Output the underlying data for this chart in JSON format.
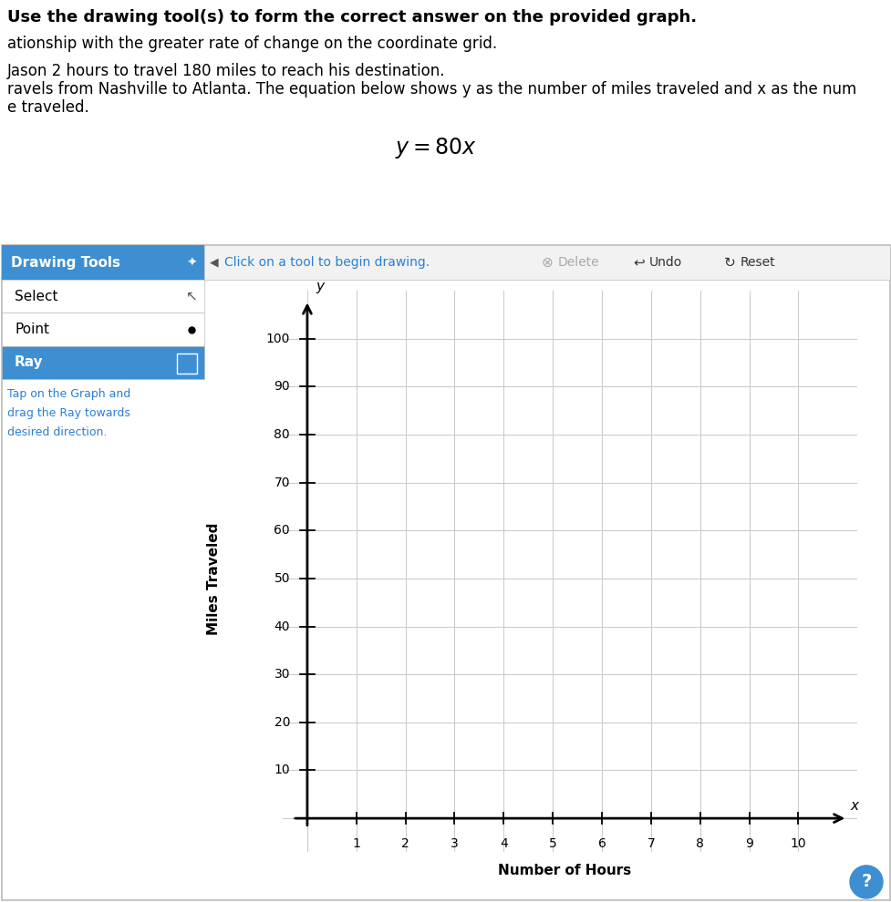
{
  "title_line1": "Use the drawing tool(s) to form the correct answer on the provided graph.",
  "text_line2": "ationship with the greater rate of change on the coordinate grid.",
  "text_line3": "Jason 2 hours to travel 180 miles to reach his destination.",
  "text_line4": "ravels from Nashville to Atlanta. The equation below shows y as the number of miles traveled and x as the num",
  "text_line5": "e traveled.",
  "drawing_tools_label": "Drawing Tools",
  "toolbar_text": "Click on a tool to begin drawing.",
  "btn_delete": "Delete",
  "btn_undo": "Undo",
  "btn_reset": "Reset",
  "select_label": "Select",
  "point_label": "Point",
  "ray_label": "Ray",
  "ray_instruction": "Tap on the Graph and\ndrag the Ray towards\ndesired direction.",
  "xlabel": "Number of Hours",
  "ylabel": "Miles Traveled",
  "xticks": [
    1,
    2,
    3,
    4,
    5,
    6,
    7,
    8,
    9,
    10
  ],
  "yticks": [
    10,
    20,
    30,
    40,
    50,
    60,
    70,
    80,
    90,
    100
  ],
  "grid_color": "#cccccc",
  "background_color": "#ffffff",
  "drawing_tools_bg": "#3d8fd1",
  "ray_btn_bg": "#3d8fd1",
  "ray_instruction_color": "#2a7fd4",
  "help_btn_bg": "#3d8fd1",
  "border_color": "#bbbbbb",
  "title_fontsize": 13,
  "text_fontsize": 12,
  "axis_label_fontsize": 11,
  "tick_fontsize": 10
}
